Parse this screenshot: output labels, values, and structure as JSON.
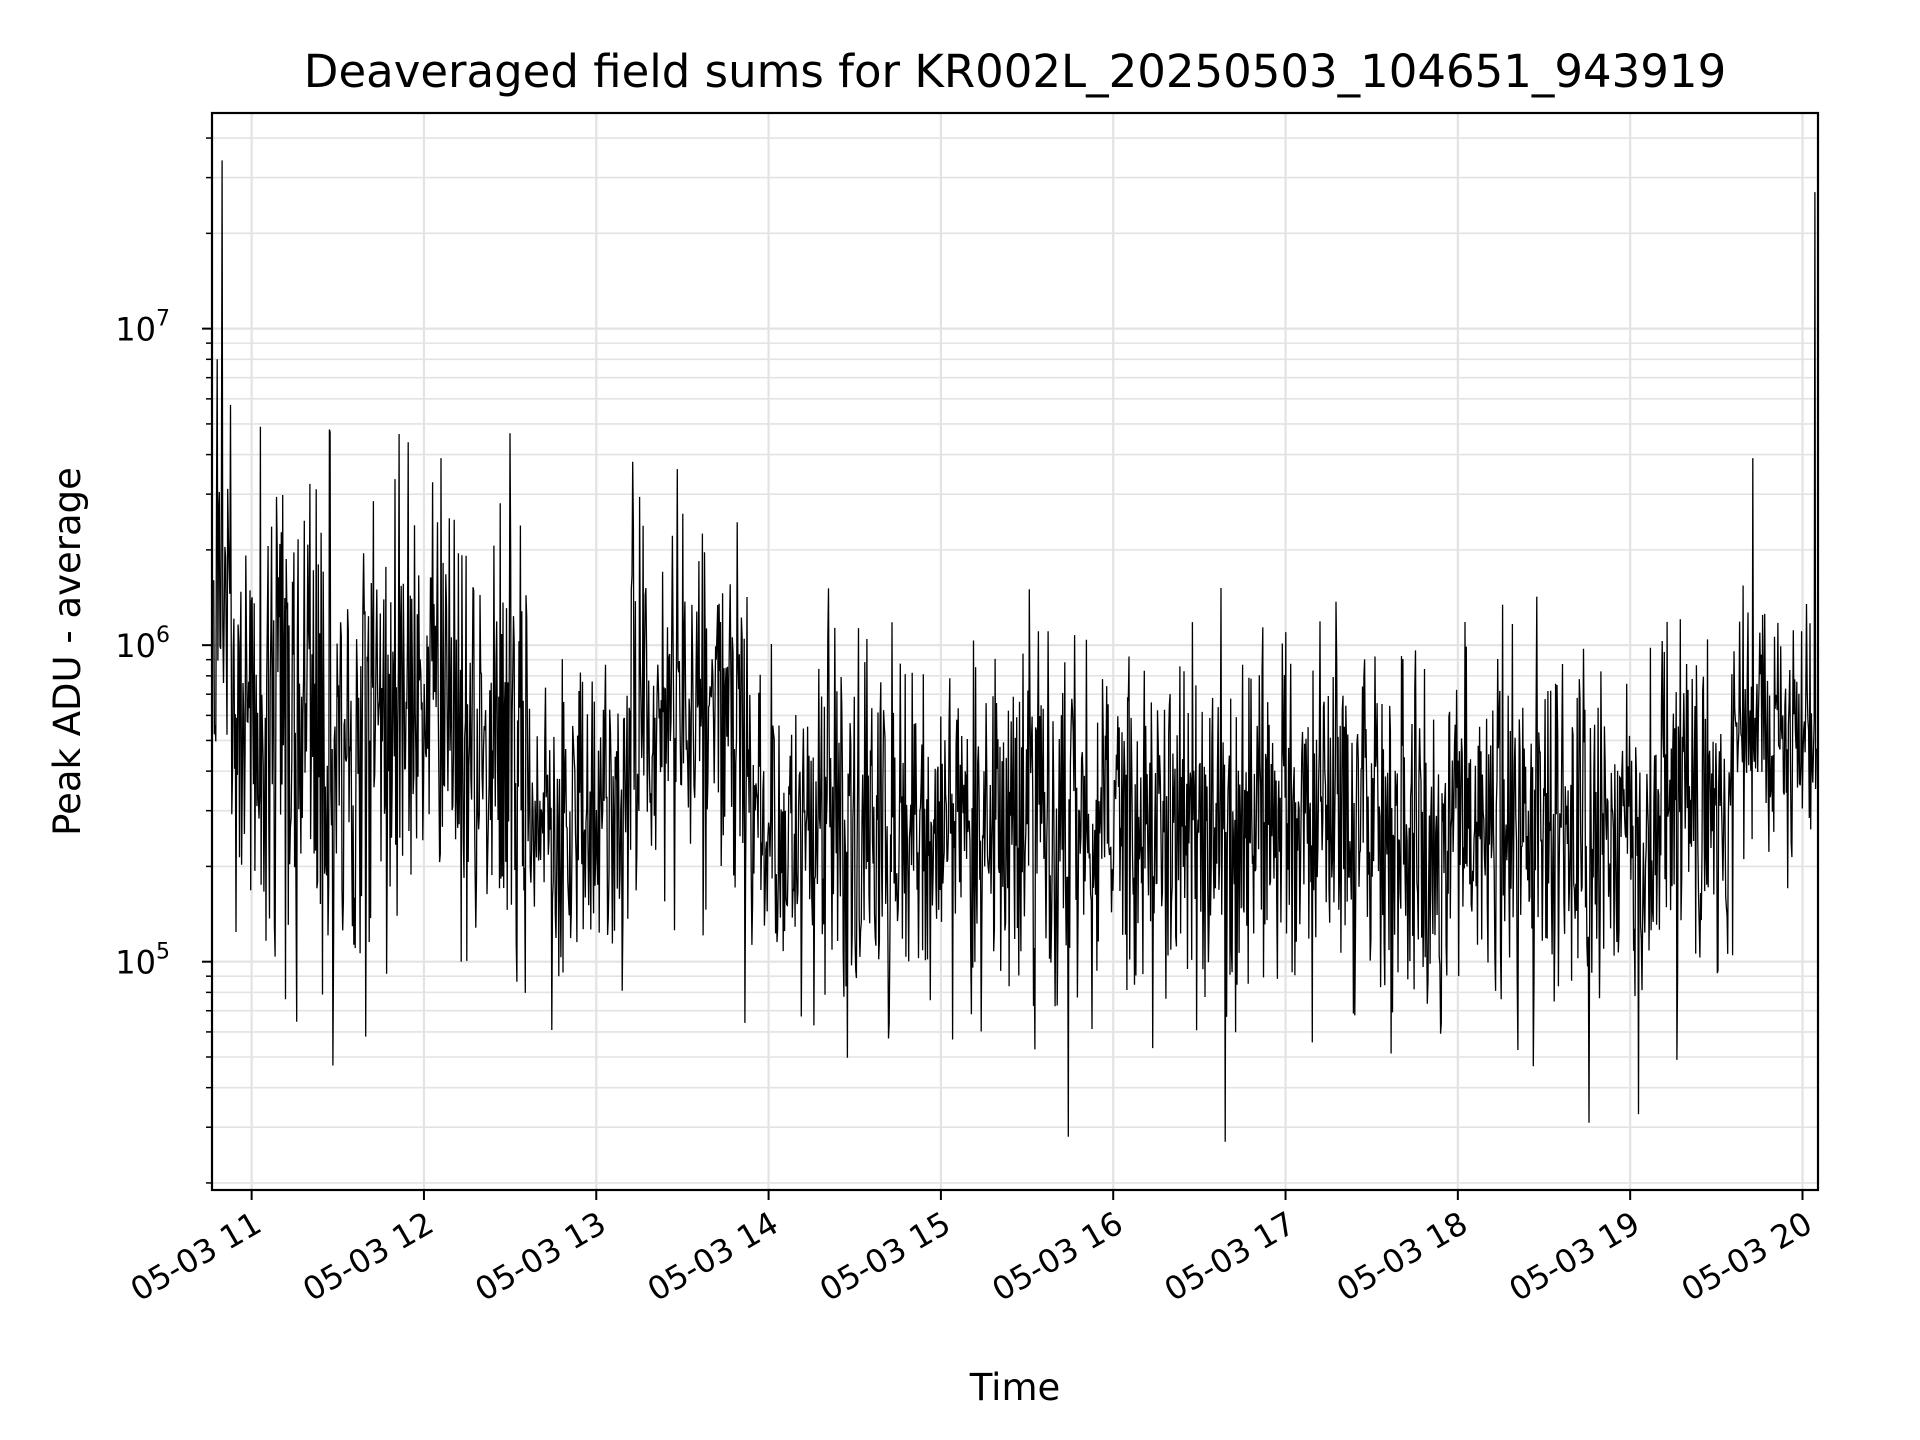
{
  "chart_data": {
    "type": "line",
    "title": "Deaveraged field sums for KR002L_20250503_104651_943919",
    "xlabel": "Time",
    "ylabel": "Peak ADU - average",
    "yscale": "log",
    "ylim": [
      19000,
      48000000
    ],
    "xlim": [
      10.77,
      20.09
    ],
    "grid": true,
    "line_color": "#000000",
    "x_ticks": [
      {
        "value": 11,
        "label": "05-03 11"
      },
      {
        "value": 12,
        "label": "05-03 12"
      },
      {
        "value": 13,
        "label": "05-03 13"
      },
      {
        "value": 14,
        "label": "05-03 14"
      },
      {
        "value": 15,
        "label": "05-03 15"
      },
      {
        "value": 16,
        "label": "05-03 16"
      },
      {
        "value": 17,
        "label": "05-03 17"
      },
      {
        "value": 18,
        "label": "05-03 18"
      },
      {
        "value": 19,
        "label": "05-03 19"
      },
      {
        "value": 20,
        "label": "05-03 20"
      }
    ],
    "y_ticks": [
      {
        "value": 100000,
        "base": "10",
        "exp": "5"
      },
      {
        "value": 1000000,
        "base": "10",
        "exp": "6"
      },
      {
        "value": 10000000,
        "base": "10",
        "exp": "7"
      }
    ],
    "series_profile": {
      "name": "Peak ADU - average",
      "x_unit": "hour of 05-03",
      "start": 10.78,
      "end": 20.08,
      "points": 2300,
      "segments": [
        {
          "x": [
            10.78,
            10.88
          ],
          "median": 1000000,
          "spread": 2.0
        },
        {
          "x": [
            10.88,
            11.6
          ],
          "median": 500000,
          "spread": 2.4
        },
        {
          "x": [
            11.6,
            12.6
          ],
          "median": 550000,
          "spread": 2.3
        },
        {
          "x": [
            12.6,
            13.2
          ],
          "median": 280000,
          "spread": 1.8
        },
        {
          "x": [
            13.2,
            13.85
          ],
          "median": 700000,
          "spread": 2.0
        },
        {
          "x": [
            13.85,
            19.6
          ],
          "median": 270000,
          "spread": 1.9
        },
        {
          "x": [
            19.6,
            20.08
          ],
          "median": 560000,
          "spread": 1.5
        }
      ],
      "peaks": [
        {
          "x": 10.83,
          "value": 34000000
        },
        {
          "x": 10.8,
          "value": 8000000
        },
        {
          "x": 11.05,
          "value": 4900000
        },
        {
          "x": 11.45,
          "value": 4800000
        },
        {
          "x": 12.1,
          "value": 3900000
        },
        {
          "x": 13.47,
          "value": 3600000
        },
        {
          "x": 17.0,
          "value": 1100000
        },
        {
          "x": 19.71,
          "value": 3900000
        },
        {
          "x": 20.07,
          "value": 27000000
        }
      ],
      "dips": [
        {
          "x": 11.47,
          "value": 47000
        },
        {
          "x": 11.66,
          "value": 58000
        },
        {
          "x": 15.74,
          "value": 28000
        },
        {
          "x": 16.65,
          "value": 27000
        },
        {
          "x": 18.76,
          "value": 31000
        },
        {
          "x": 19.05,
          "value": 33000
        }
      ]
    }
  }
}
